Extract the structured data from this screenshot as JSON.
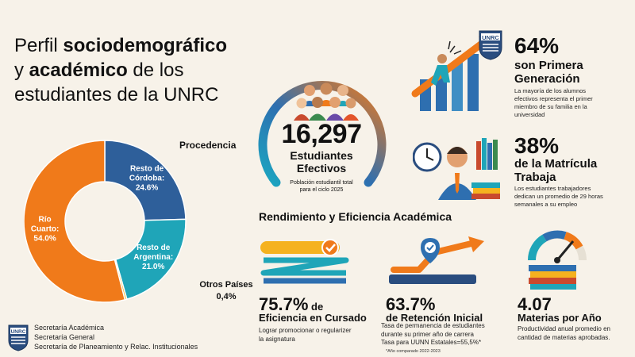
{
  "title": {
    "part1": "Perfil ",
    "bold1": "sociodemográfico",
    "part2": "y ",
    "bold2": "académico",
    "part3": " de los",
    "line3": "estudiantes de la UNRC"
  },
  "logo_text": "UNRC",
  "chart_data": {
    "type": "pie",
    "title": "Procedencia",
    "series": [
      {
        "name": "Resto de Córdoba",
        "label": "Resto de\nCórdoba:\n24.6%",
        "value": 24.6,
        "color": "#2e5f9a"
      },
      {
        "name": "Resto de Argentina",
        "label": "Resto de\nArgentina:\n21.0%",
        "value": 21.0,
        "color": "#1fa5b8"
      },
      {
        "name": "Otros Países",
        "label": "Otros Países\n0,4%",
        "value": 0.4,
        "color": "#f5b21f"
      },
      {
        "name": "Río Cuarto",
        "label": "Río\nCuarto:\n54.0%",
        "value": 54.0,
        "color": "#f07a1a"
      }
    ]
  },
  "center": {
    "number": "16,297",
    "label": "Estudiantes\nEfectivos",
    "sub": "Población estudiantil total\npara el ciclo 2025"
  },
  "stats_right": [
    {
      "pct": "64%",
      "title": "son Primera\nGeneración",
      "desc": "La mayoría de los alumnos\nefectivos representa el primer\nmiembro de su familia en la\nuniversidad"
    },
    {
      "pct": "38%",
      "title": "de la Matrícula\nTrabaja",
      "desc": "Los estudiantes trabajadores\ndedican un promedio de 29 horas\nsemanales a su empleo"
    }
  ],
  "section_title": "Rendimiento y Eficiencia Académica",
  "kpis": [
    {
      "num": "75.7%",
      "suffix": " de",
      "title": "Eficiencia en Cursado",
      "desc": "Lograr promocionar o regularizer\nla asignatura"
    },
    {
      "num": "63.7%",
      "suffix": "",
      "title": "de Retención Inicial",
      "desc": "Tasa de permanencia de estudiantes\ndurante su primer año de carrera\nTasa para UUNN Estatales=55,5%*",
      "note": "*Año comparado 2022-2023"
    },
    {
      "num": "4.07",
      "suffix": "",
      "title": "Materias por Año",
      "desc": "Productividad anual promedio en\ncantidad de materias aprobadas."
    }
  ],
  "footer": [
    "Secretaría Académica",
    "Secretaría General",
    "Secretaría de Planeamiento y Relac. Institucionales"
  ]
}
